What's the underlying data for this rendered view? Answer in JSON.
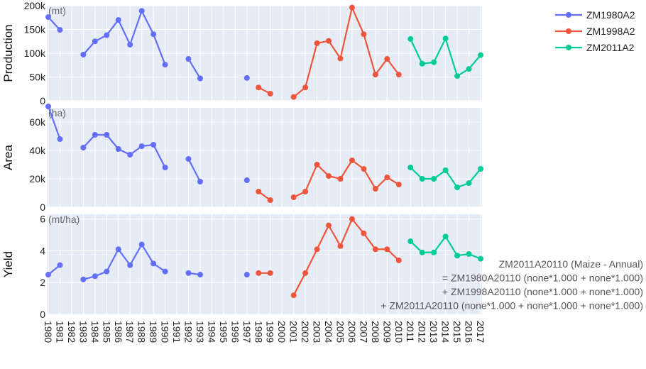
{
  "chart_data": {
    "type": "line",
    "x_start": 1980,
    "x_end": 2017,
    "x_categories": [
      "1980",
      "1981",
      "1982",
      "1983",
      "1984",
      "1985",
      "1986",
      "1987",
      "1988",
      "1989",
      "1990",
      "1991",
      "1992",
      "1993",
      "1994",
      "1995",
      "1996",
      "1997",
      "1998",
      "1999",
      "2000",
      "2001",
      "2002",
      "2003",
      "2004",
      "2005",
      "2006",
      "2007",
      "2008",
      "2009",
      "2010",
      "2011",
      "2012",
      "2013",
      "2014",
      "2015",
      "2016",
      "2017"
    ],
    "series": [
      {
        "name": "ZM1980A2",
        "color": "#636efa"
      },
      {
        "name": "ZM1998A2",
        "color": "#ef553b"
      },
      {
        "name": "ZM2011A2",
        "color": "#00cc96"
      }
    ],
    "panels": [
      {
        "key": "production",
        "ylabel": "Production",
        "unit": "(mt)",
        "ylim": [
          0,
          200000
        ],
        "yticks": [
          0,
          50000,
          100000,
          150000,
          200000
        ],
        "ytick_labels": [
          "0",
          "50k",
          "100k",
          "150k",
          "200k"
        ],
        "data": [
          {
            "series": "ZM1980A2",
            "x": [
              1980,
              1981,
              1982,
              1983,
              1984,
              1985,
              1986,
              1987,
              1988,
              1989,
              1990,
              1991,
              1992,
              1993,
              1994,
              1995,
              1996,
              1997
            ],
            "y": [
              176000,
              149000,
              null,
              97000,
              125000,
              138000,
              170000,
              118000,
              189000,
              140000,
              76000,
              null,
              88000,
              47000,
              null,
              null,
              null,
              48000
            ]
          },
          {
            "series": "ZM1998A2",
            "x": [
              1998,
              1999,
              2000,
              2001,
              2002,
              2003,
              2004,
              2005,
              2006,
              2007,
              2008,
              2009,
              2010
            ],
            "y": [
              28000,
              15000,
              null,
              8000,
              28000,
              121000,
              126000,
              89000,
              196000,
              140000,
              55000,
              88000,
              55000
            ]
          },
          {
            "series": "ZM2011A2",
            "x": [
              2011,
              2012,
              2013,
              2014,
              2015,
              2016,
              2017
            ],
            "y": [
              130000,
              78000,
              81000,
              131000,
              52000,
              67000,
              96000
            ]
          }
        ]
      },
      {
        "key": "area",
        "ylabel": "Area",
        "unit": "(ha)",
        "ylim": [
          0,
          70000
        ],
        "yticks": [
          0,
          20000,
          40000,
          60000
        ],
        "ytick_labels": [
          "0",
          "20k",
          "40k",
          "60k"
        ],
        "data": [
          {
            "series": "ZM1980A2",
            "x": [
              1980,
              1981,
              1982,
              1983,
              1984,
              1985,
              1986,
              1987,
              1988,
              1989,
              1990,
              1991,
              1992,
              1993,
              1994,
              1995,
              1996,
              1997
            ],
            "y": [
              71000,
              48000,
              null,
              42000,
              51000,
              51000,
              41000,
              37000,
              43000,
              44000,
              28000,
              null,
              34000,
              18000,
              null,
              null,
              null,
              19000
            ]
          },
          {
            "series": "ZM1998A2",
            "x": [
              1998,
              1999,
              2000,
              2001,
              2002,
              2003,
              2004,
              2005,
              2006,
              2007,
              2008,
              2009,
              2010
            ],
            "y": [
              11000,
              5000,
              null,
              7000,
              11000,
              30000,
              22000,
              20000,
              33000,
              27000,
              13000,
              21000,
              16000
            ]
          },
          {
            "series": "ZM2011A2",
            "x": [
              2011,
              2012,
              2013,
              2014,
              2015,
              2016,
              2017
            ],
            "y": [
              28000,
              20000,
              20000,
              26000,
              14000,
              17000,
              27000
            ]
          }
        ]
      },
      {
        "key": "yield",
        "ylabel": "Yield",
        "unit": "(mt/ha)",
        "ylim": [
          0,
          6.3
        ],
        "yticks": [
          0,
          2,
          4,
          6
        ],
        "ytick_labels": [
          "0",
          "2",
          "4",
          "6"
        ],
        "data": [
          {
            "series": "ZM1980A2",
            "x": [
              1980,
              1981,
              1982,
              1983,
              1984,
              1985,
              1986,
              1987,
              1988,
              1989,
              1990,
              1991,
              1992,
              1993,
              1994,
              1995,
              1996,
              1997
            ],
            "y": [
              2.5,
              3.1,
              null,
              2.2,
              2.4,
              2.7,
              4.1,
              3.1,
              4.4,
              3.2,
              2.7,
              null,
              2.6,
              2.5,
              null,
              null,
              null,
              2.5
            ]
          },
          {
            "series": "ZM1998A2",
            "x": [
              1998,
              1999,
              2000,
              2001,
              2002,
              2003,
              2004,
              2005,
              2006,
              2007,
              2008,
              2009,
              2010
            ],
            "y": [
              2.6,
              2.6,
              null,
              1.2,
              2.6,
              4.1,
              5.6,
              4.3,
              6.0,
              5.1,
              4.1,
              4.1,
              3.4
            ]
          },
          {
            "series": "ZM2011A2",
            "x": [
              2011,
              2012,
              2013,
              2014,
              2015,
              2016,
              2017
            ],
            "y": [
              4.6,
              3.9,
              3.9,
              4.9,
              3.7,
              3.8,
              3.5
            ]
          }
        ]
      }
    ],
    "legend_position": "top-right",
    "grid": true,
    "annotation_lines": [
      "ZM2011A20110 (Maize - Annual)",
      "= ZM1980A20110 (none*1.000 + none*1.000)",
      "+ ZM1998A20110 (none*1.000 + none*1.000)",
      "+ ZM2011A20110 (none*1.000 + none*1.000 + none*1.000)"
    ],
    "plot_bg": "#e5ecf6",
    "grid_color": "#ffffff"
  }
}
